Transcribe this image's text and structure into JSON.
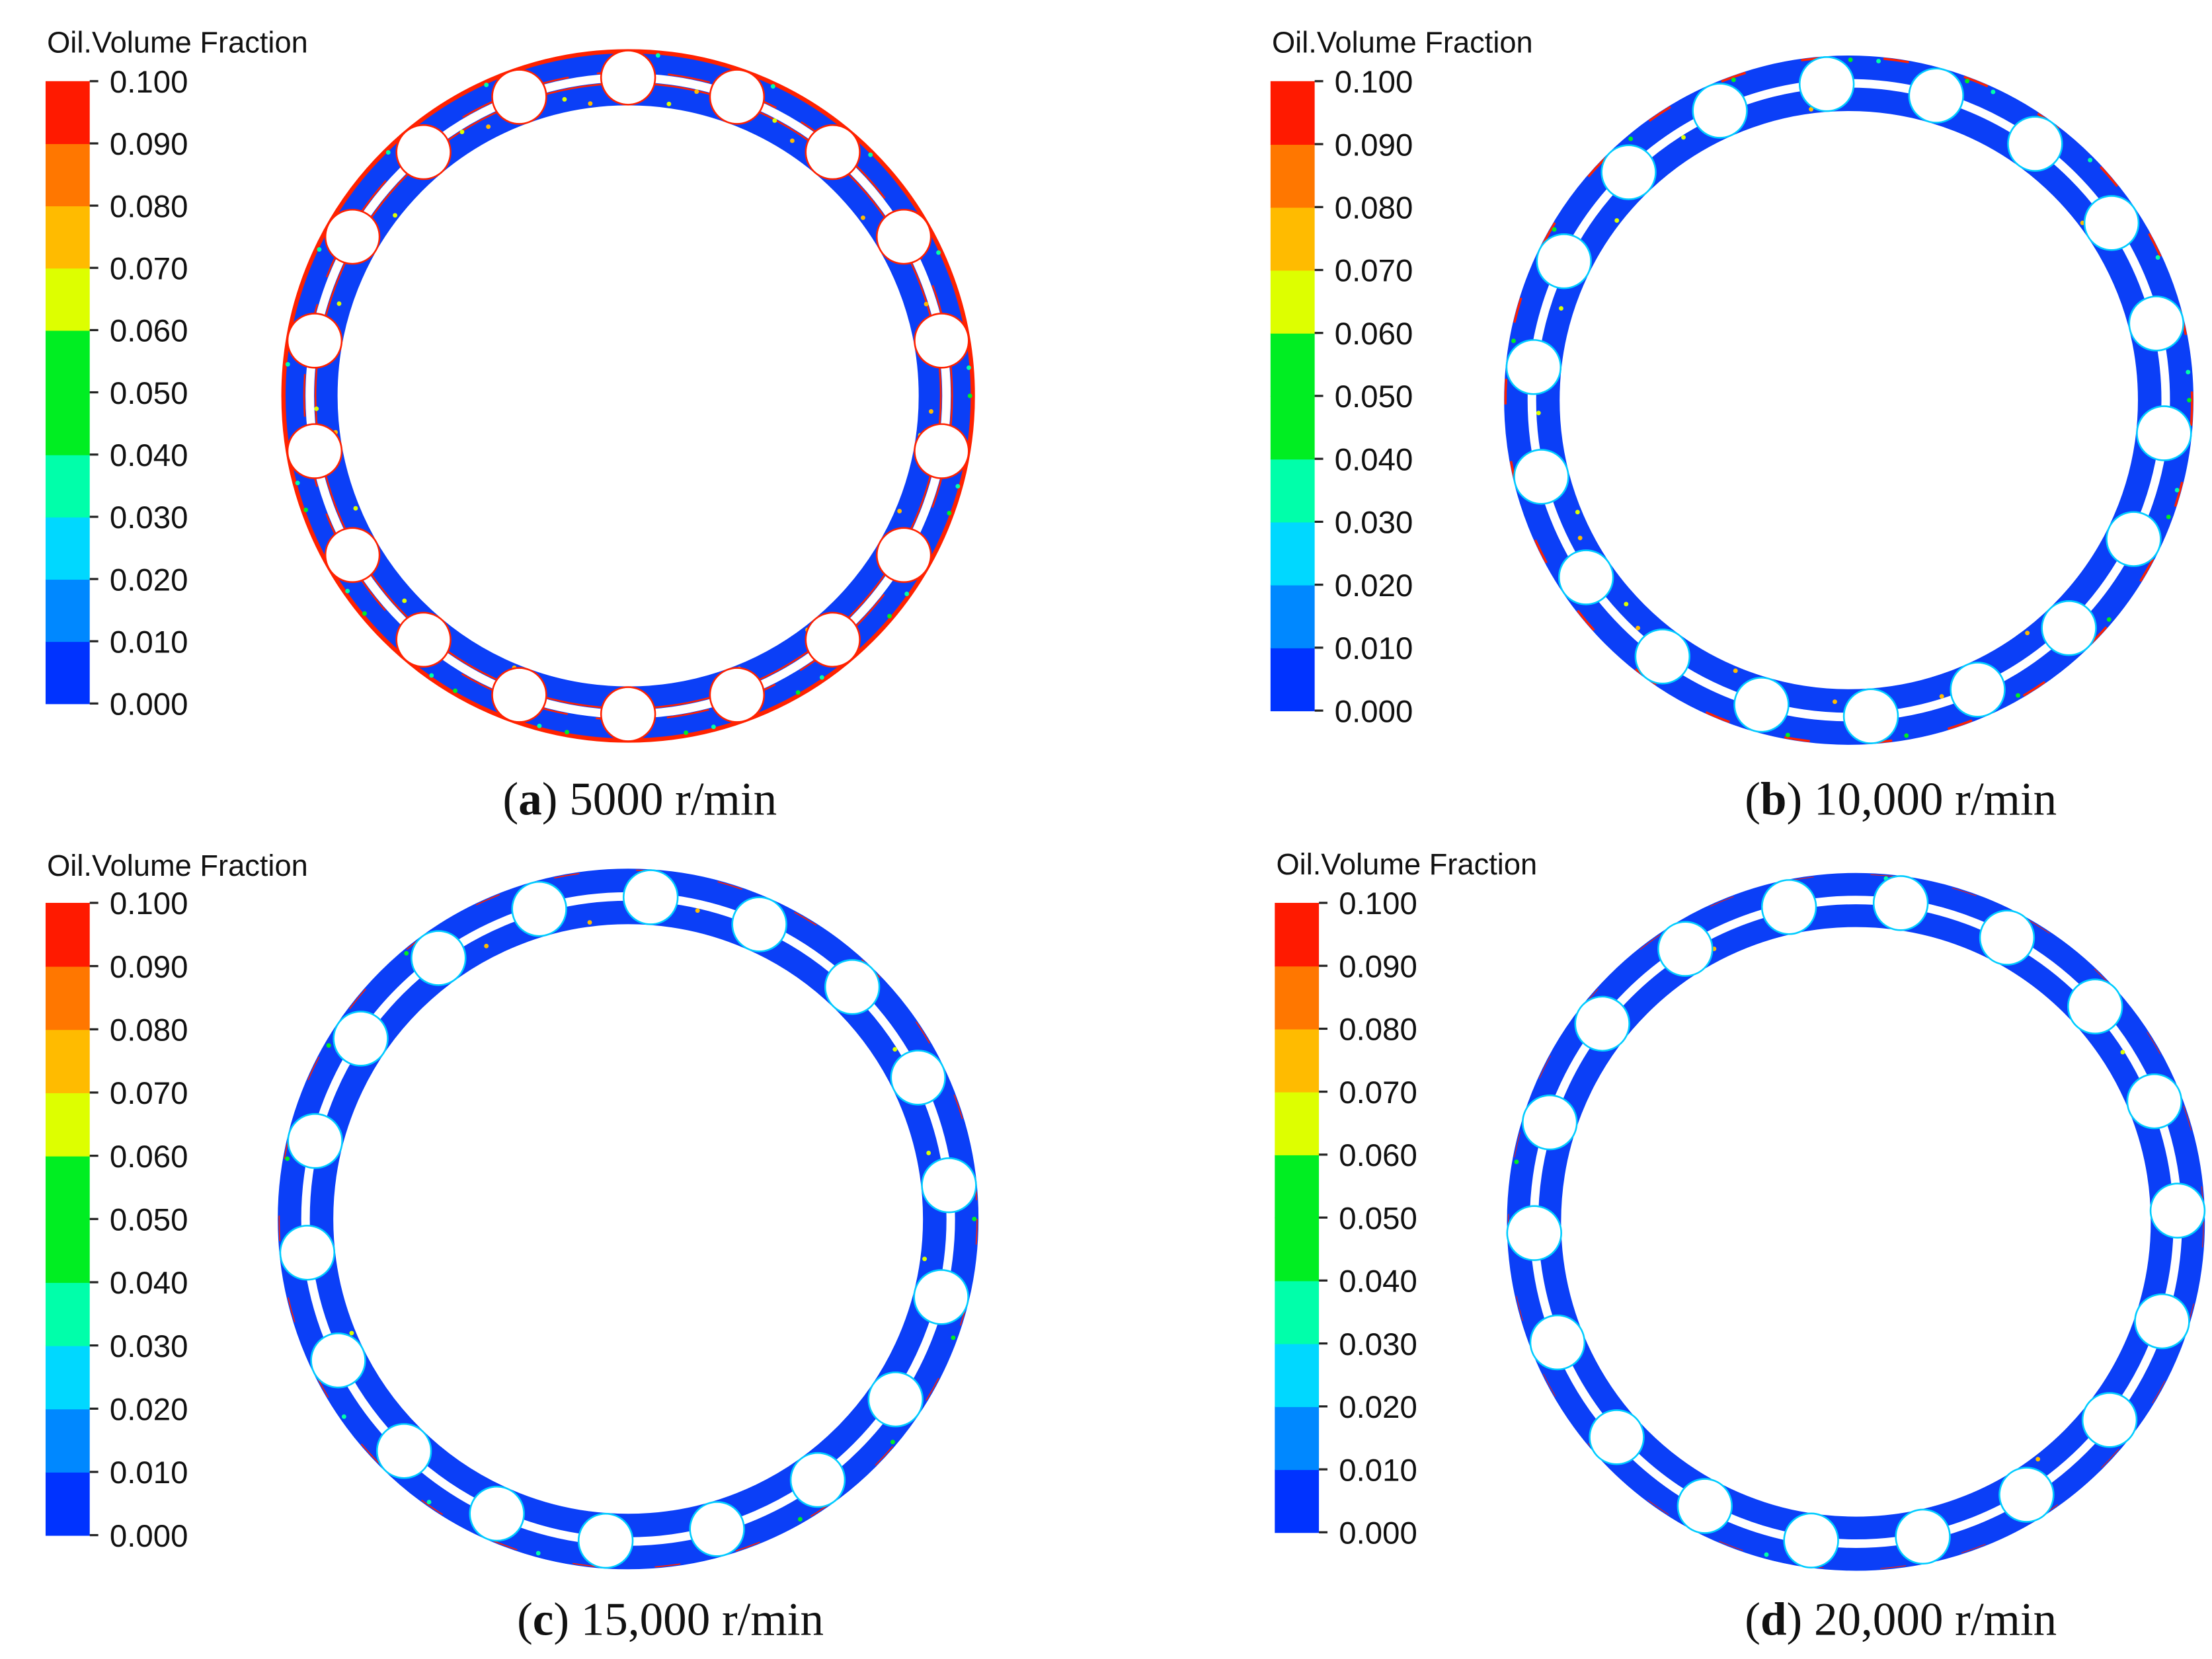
{
  "colors": {
    "scale_bottom_to_top": [
      "#0033ff",
      "#0088ff",
      "#00d8ff",
      "#00ffaa",
      "#00ee22",
      "#ddff00",
      "#ffbb00",
      "#ff7700",
      "#ff1a00"
    ],
    "ring_fill": "#0b3ff7",
    "ring_edge": "#ff2200",
    "background": "#ffffff"
  },
  "panels": [
    {
      "id": "a",
      "legend_title": "Oil.Volume Fraction",
      "legend_ticks": [
        "0.100",
        "0.090",
        "0.080",
        "0.070",
        "0.060",
        "0.050",
        "0.040",
        "0.030",
        "0.020",
        "0.010",
        "0.000"
      ],
      "caption_letter": "a",
      "caption_text": " 5000 r/min",
      "ball_count": 18,
      "oil_level": "high"
    },
    {
      "id": "b",
      "legend_title": "Oil.Volume Fraction",
      "legend_ticks": [
        "0.100",
        "0.090",
        "0.080",
        "0.070",
        "0.060",
        "0.050",
        "0.040",
        "0.030",
        "0.020",
        "0.010",
        "0.000"
      ],
      "caption_letter": "b",
      "caption_text": " 10,000 r/min",
      "ball_count": 18,
      "oil_level": "medium"
    },
    {
      "id": "c",
      "legend_title": "Oil.Volume Fraction",
      "legend_ticks": [
        "0.100",
        "0.090",
        "0.080",
        "0.070",
        "0.060",
        "0.050",
        "0.040",
        "0.030",
        "0.020",
        "0.010",
        "0.000"
      ],
      "caption_letter": "c",
      "caption_text": " 15,000 r/min",
      "ball_count": 18,
      "oil_level": "low"
    },
    {
      "id": "d",
      "legend_title": "Oil.Volume Fraction",
      "legend_ticks": [
        "0.100",
        "0.090",
        "0.080",
        "0.070",
        "0.060",
        "0.050",
        "0.040",
        "0.030",
        "0.020",
        "0.010",
        "0.000"
      ],
      "caption_letter": "d",
      "caption_text": " 20,000 r/min",
      "ball_count": 18,
      "oil_level": "minimal"
    }
  ]
}
